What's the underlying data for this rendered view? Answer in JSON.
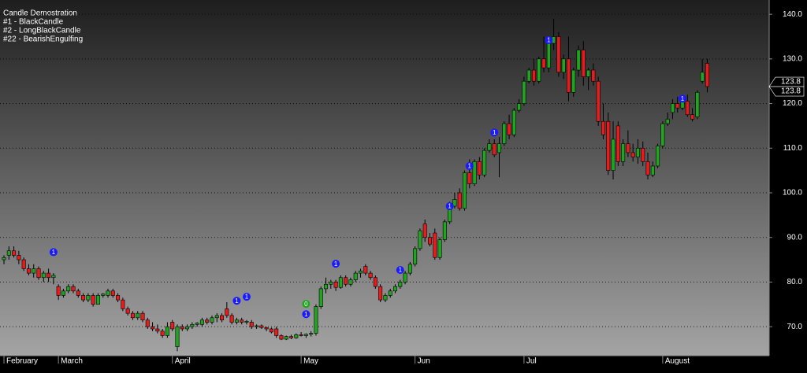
{
  "chart_data": {
    "type": "candlestick",
    "title": "Candle Demostration",
    "legend": [
      "#1 - BlackCandle",
      "#2 - LongBlackCandle",
      "#22 - BearishEngulfing"
    ],
    "up_color": "#1fa51f",
    "down_color": "#e81c1c",
    "ylim": [
      63.5,
      143.2
    ],
    "yticks": [
      {
        "value": 70,
        "label": "70.0"
      },
      {
        "value": 80,
        "label": "80.0"
      },
      {
        "value": 90,
        "label": "90.0"
      },
      {
        "value": 100,
        "label": "100.0"
      },
      {
        "value": 110,
        "label": "110.0"
      },
      {
        "value": 120,
        "label": "120.0"
      },
      {
        "value": 130,
        "label": "130.0"
      },
      {
        "value": 140,
        "label": "140.0"
      }
    ],
    "grid": true,
    "xlim": [
      -0.8,
      154.5
    ],
    "xticks": [
      {
        "value": 0,
        "label": "February"
      },
      {
        "value": 11,
        "label": "March"
      },
      {
        "value": 34,
        "label": "April"
      },
      {
        "value": 60,
        "label": "May"
      },
      {
        "value": 83,
        "label": "Jun"
      },
      {
        "value": 105,
        "label": "Jul"
      },
      {
        "value": 133,
        "label": "August"
      }
    ],
    "last_value": {
      "value": 123.8,
      "label": "123.8"
    },
    "markers": [
      {
        "index": 10,
        "value": 86.7,
        "label": "1",
        "color": "#1a1aff"
      },
      {
        "index": 47,
        "value": 75.8,
        "label": "1",
        "color": "#1a1aff"
      },
      {
        "index": 49,
        "value": 76.7,
        "label": "1",
        "color": "#1a1aff"
      },
      {
        "index": 61,
        "value": 72.8,
        "label": "1",
        "color": "#1a1aff"
      },
      {
        "index": 61,
        "value": 75.1,
        "label": "0",
        "color": "#1fa51f"
      },
      {
        "index": 67,
        "value": 84.1,
        "label": "1",
        "color": "#1a1aff"
      },
      {
        "index": 80,
        "value": 82.7,
        "label": "1",
        "color": "#1a1aff"
      },
      {
        "index": 90,
        "value": 97,
        "label": "1",
        "color": "#1a1aff"
      },
      {
        "index": 94,
        "value": 106,
        "label": "1",
        "color": "#1a1aff"
      },
      {
        "index": 99,
        "value": 113.5,
        "label": "1",
        "color": "#1a1aff"
      },
      {
        "index": 110,
        "value": 134.2,
        "label": "1",
        "color": "#1a1aff"
      },
      {
        "index": 137,
        "value": 121.1,
        "label": "1",
        "color": "#1a1aff"
      }
    ],
    "candles": [
      [
        85,
        86,
        84,
        85.5
      ],
      [
        86,
        88,
        85,
        87
      ],
      [
        87,
        88,
        85.5,
        86
      ],
      [
        86,
        87,
        84,
        85
      ],
      [
        85,
        85.5,
        82.5,
        83
      ],
      [
        83,
        84,
        81.5,
        82
      ],
      [
        82,
        84,
        81,
        83
      ],
      [
        83,
        83.5,
        80.5,
        81
      ],
      [
        81,
        82.5,
        80,
        82
      ],
      [
        82,
        83,
        80,
        81
      ],
      [
        81,
        82,
        79.5,
        81.5
      ],
      [
        79,
        79.5,
        76,
        77
      ],
      [
        77,
        78.5,
        76.5,
        78
      ],
      [
        78,
        79.5,
        77.5,
        79
      ],
      [
        79,
        79.5,
        77.5,
        78
      ],
      [
        78,
        78.5,
        76.5,
        77
      ],
      [
        77,
        77.5,
        75.5,
        76
      ],
      [
        76,
        77.5,
        75.5,
        77
      ],
      [
        77,
        77.5,
        74.5,
        75
      ],
      [
        75,
        77.5,
        75,
        77
      ],
      [
        77,
        77.5,
        76.5,
        77.3
      ],
      [
        77,
        78.5,
        76.5,
        78
      ],
      [
        78,
        78.5,
        76.5,
        77
      ],
      [
        77,
        77.5,
        75.5,
        76
      ],
      [
        76,
        76.5,
        73.5,
        74
      ],
      [
        74,
        74.5,
        72.5,
        73
      ],
      [
        73,
        73.5,
        71.5,
        72
      ],
      [
        72,
        73.5,
        71.5,
        73
      ],
      [
        73,
        73.5,
        71,
        71.5
      ],
      [
        71.5,
        72,
        69.5,
        70
      ],
      [
        70,
        71,
        69,
        69.5
      ],
      [
        69.5,
        70.5,
        68.5,
        69
      ],
      [
        69,
        69.5,
        67.5,
        68
      ],
      [
        68,
        71,
        67.5,
        70
      ],
      [
        71,
        71.5,
        69,
        69.5
      ],
      [
        65.5,
        70.5,
        64.5,
        70
      ],
      [
        70,
        70.5,
        69,
        69.5
      ],
      [
        69.5,
        70.5,
        69,
        70
      ],
      [
        70,
        71,
        69.5,
        70.5
      ],
      [
        70.5,
        71,
        70,
        70.8
      ],
      [
        70.5,
        72,
        70,
        71.5
      ],
      [
        71.5,
        72,
        70.5,
        71
      ],
      [
        71,
        72.5,
        70.5,
        72
      ],
      [
        72,
        73,
        71,
        72.5
      ],
      [
        72.5,
        73,
        71,
        71.5
      ],
      [
        74,
        75.5,
        72,
        72.5
      ],
      [
        72.5,
        73,
        70.5,
        71
      ],
      [
        71,
        72,
        70.5,
        71.5
      ],
      [
        71.5,
        72,
        70.5,
        71
      ],
      [
        71,
        71.5,
        70.5,
        71.2
      ],
      [
        71,
        71.5,
        69.5,
        70
      ],
      [
        70,
        70.5,
        69.5,
        70.2
      ],
      [
        70.2,
        70.5,
        69.5,
        69.8
      ],
      [
        69.8,
        70,
        69,
        69.5
      ],
      [
        69.5,
        69.8,
        68.5,
        68.8
      ],
      [
        69.5,
        70,
        67.5,
        68
      ],
      [
        68,
        68.3,
        67,
        67.2
      ],
      [
        67.2,
        68,
        67,
        67.8
      ],
      [
        67.8,
        68.2,
        67.2,
        67.5
      ],
      [
        67.5,
        68.5,
        67.3,
        68.2
      ],
      [
        68.2,
        68.8,
        67.8,
        68
      ],
      [
        68,
        68.5,
        67.5,
        68.3
      ],
      [
        68.3,
        69,
        67.8,
        68.5
      ],
      [
        68.5,
        75,
        68,
        74.5
      ],
      [
        74.5,
        79,
        74,
        78.5
      ],
      [
        78.5,
        81,
        77.5,
        79.5
      ],
      [
        79.5,
        80.5,
        78.5,
        80
      ],
      [
        80,
        80.5,
        78,
        78.8
      ],
      [
        78.8,
        81.5,
        78.5,
        81
      ],
      [
        81,
        81.5,
        79,
        79.5
      ],
      [
        79.5,
        81,
        79,
        80.5
      ],
      [
        80.5,
        82.5,
        80,
        82
      ],
      [
        82,
        83,
        81,
        82.5
      ],
      [
        83.5,
        84,
        81.5,
        82
      ],
      [
        82,
        82.5,
        80.5,
        81
      ],
      [
        81,
        81.5,
        78.5,
        79
      ],
      [
        79,
        79.5,
        75.5,
        76
      ],
      [
        76,
        77.5,
        75.5,
        77
      ],
      [
        77,
        78.5,
        76.5,
        78
      ],
      [
        78,
        79.5,
        77.5,
        79
      ],
      [
        79,
        80.5,
        78.5,
        80
      ],
      [
        80,
        82.5,
        79.5,
        82
      ],
      [
        82,
        84.5,
        81.5,
        84
      ],
      [
        84,
        88,
        83.5,
        87.5
      ],
      [
        87.5,
        92,
        87,
        91.5
      ],
      [
        93,
        94,
        89,
        90
      ],
      [
        90,
        91,
        88,
        88.5
      ],
      [
        91,
        92,
        85,
        85.5
      ],
      [
        85.5,
        90,
        85,
        89.5
      ],
      [
        89.5,
        94,
        89,
        93.5
      ],
      [
        93.5,
        98,
        93,
        97
      ],
      [
        97,
        100,
        96.5,
        98.5
      ],
      [
        100,
        101,
        96,
        96.5
      ],
      [
        96.5,
        105,
        96,
        104.5
      ],
      [
        104.5,
        107.5,
        101,
        102
      ],
      [
        102,
        107.5,
        101.5,
        107
      ],
      [
        107,
        108,
        103,
        104
      ],
      [
        104,
        110,
        103.5,
        109.5
      ],
      [
        109.5,
        112,
        109,
        111
      ],
      [
        111,
        112,
        108,
        108.5
      ],
      [
        109,
        112.5,
        103.5,
        111
      ],
      [
        111,
        116,
        110.5,
        115.5
      ],
      [
        115.5,
        117.5,
        112,
        113
      ],
      [
        113,
        119,
        112.5,
        118.5
      ],
      [
        118.5,
        121,
        118,
        120
      ],
      [
        120,
        126,
        119.5,
        125
      ],
      [
        125,
        128,
        124.5,
        127.5
      ],
      [
        127.5,
        130,
        124,
        125
      ],
      [
        125,
        130.5,
        124.5,
        130
      ],
      [
        130,
        135,
        127,
        128
      ],
      [
        128,
        134,
        127,
        133.5
      ],
      [
        133.5,
        139,
        132,
        135
      ],
      [
        135,
        136,
        126,
        127
      ],
      [
        127,
        131,
        125.5,
        130
      ],
      [
        130,
        135,
        120.5,
        122.5
      ],
      [
        122.5,
        128,
        121.5,
        127.5
      ],
      [
        127.5,
        133,
        126,
        132
      ],
      [
        132,
        134,
        124,
        126
      ],
      [
        126,
        128,
        123,
        127.5
      ],
      [
        127.5,
        129,
        124,
        125
      ],
      [
        125,
        126,
        115,
        116
      ],
      [
        116,
        120,
        112,
        113
      ],
      [
        116,
        118,
        104,
        105
      ],
      [
        105,
        116,
        103,
        112
      ],
      [
        115,
        116,
        106,
        107
      ],
      [
        107,
        112,
        106,
        111
      ],
      [
        111,
        114,
        108,
        109
      ],
      [
        109,
        111,
        107,
        108
      ],
      [
        108,
        112,
        106.5,
        110
      ],
      [
        110,
        111.5,
        106,
        107
      ],
      [
        107,
        109,
        103,
        104
      ],
      [
        104,
        107,
        103.5,
        106
      ],
      [
        106,
        111,
        105.5,
        110.5
      ],
      [
        110.5,
        116,
        110,
        115.5
      ],
      [
        115.5,
        118,
        115,
        116.5
      ],
      [
        118,
        121,
        116.5,
        120
      ],
      [
        120,
        121.5,
        118,
        119
      ],
      [
        119,
        121.5,
        118.5,
        120.5
      ],
      [
        120.5,
        122,
        117,
        117.5
      ],
      [
        117.5,
        119,
        116,
        116.5
      ],
      [
        117,
        123,
        116.5,
        122.5
      ],
      [
        125,
        130,
        124.5,
        127
      ],
      [
        129,
        130,
        122.5,
        123.8
      ]
    ]
  }
}
